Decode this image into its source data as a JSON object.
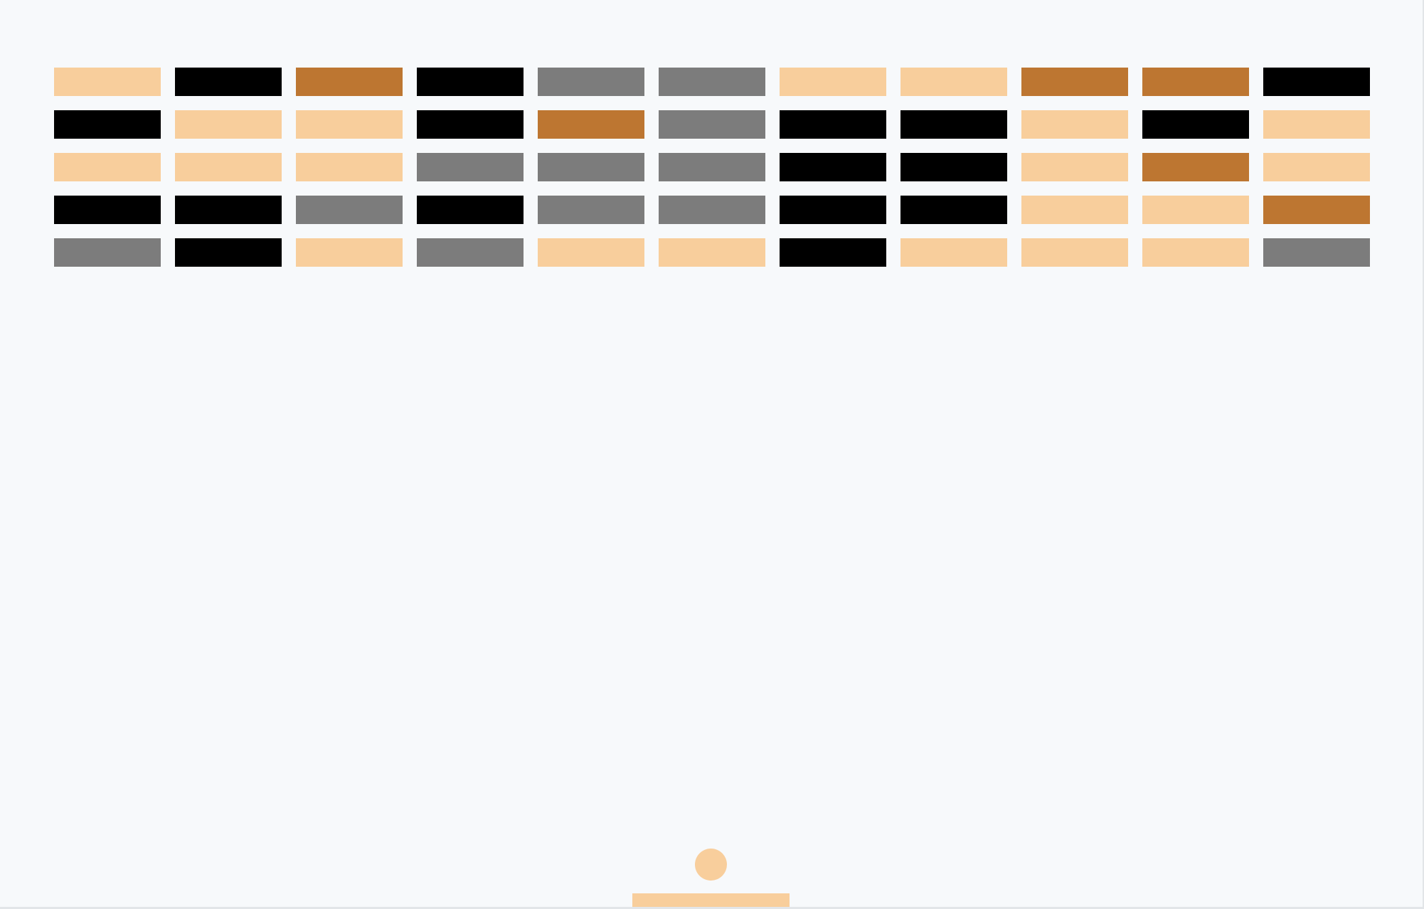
{
  "palette": {
    "background": "#f7f9fb",
    "peach": "#f8ce9c",
    "black": "#000000",
    "brown": "#bd7631",
    "gray": "#7c7c7c"
  },
  "bricks": {
    "rows": 5,
    "columns": 11,
    "colors": [
      [
        "peach",
        "black",
        "brown",
        "black",
        "gray",
        "gray",
        "peach",
        "peach",
        "brown",
        "brown",
        "black"
      ],
      [
        "black",
        "peach",
        "peach",
        "black",
        "brown",
        "gray",
        "black",
        "black",
        "peach",
        "black",
        "peach"
      ],
      [
        "peach",
        "peach",
        "peach",
        "gray",
        "gray",
        "gray",
        "black",
        "black",
        "peach",
        "brown",
        "peach"
      ],
      [
        "black",
        "black",
        "gray",
        "black",
        "gray",
        "gray",
        "black",
        "black",
        "peach",
        "peach",
        "brown"
      ],
      [
        "gray",
        "black",
        "peach",
        "gray",
        "peach",
        "peach",
        "black",
        "peach",
        "peach",
        "peach",
        "gray"
      ]
    ]
  },
  "ball": {
    "color": "peach"
  },
  "paddle": {
    "color": "peach"
  }
}
